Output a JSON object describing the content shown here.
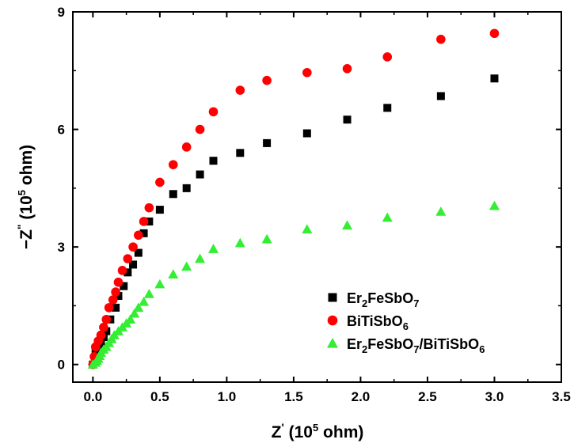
{
  "chart_data": {
    "type": "scatter",
    "xlabel": {
      "main": "Z",
      "prime": "'",
      "open": " (10",
      "exp": "5",
      "close": " ohm)"
    },
    "ylabel": {
      "main": "−Z",
      "prime": "\"",
      "open": " (10",
      "exp": "5",
      "close": " ohm)"
    },
    "xlim": [
      -0.15,
      3.5
    ],
    "ylim": [
      -0.45,
      9
    ],
    "xticks": [
      "0.0",
      "0.5",
      "1.0",
      "1.5",
      "2.0",
      "2.5",
      "3.0",
      "3.5"
    ],
    "yticks": [
      "0",
      "3",
      "6",
      "9"
    ],
    "legend_position": "bottom-right",
    "series": [
      {
        "name": "Er2FeSbO7",
        "legend_parts": [
          [
            "Er",
            ""
          ],
          [
            "2",
            "sub"
          ],
          [
            "FeSbO",
            ""
          ],
          [
            "7",
            "sub"
          ]
        ],
        "marker": "square",
        "color": "#000000",
        "points": [
          [
            0.0,
            0.0
          ],
          [
            0.02,
            0.35
          ],
          [
            0.04,
            0.42
          ],
          [
            0.06,
            0.55
          ],
          [
            0.08,
            0.7
          ],
          [
            0.1,
            0.85
          ],
          [
            0.13,
            1.15
          ],
          [
            0.17,
            1.45
          ],
          [
            0.19,
            1.75
          ],
          [
            0.23,
            2.0
          ],
          [
            0.26,
            2.35
          ],
          [
            0.3,
            2.55
          ],
          [
            0.34,
            2.85
          ],
          [
            0.38,
            3.35
          ],
          [
            0.42,
            3.65
          ],
          [
            0.5,
            3.95
          ],
          [
            0.6,
            4.35
          ],
          [
            0.7,
            4.5
          ],
          [
            0.8,
            4.85
          ],
          [
            0.9,
            5.2
          ],
          [
            1.1,
            5.4
          ],
          [
            1.3,
            5.65
          ],
          [
            1.6,
            5.9
          ],
          [
            1.9,
            6.25
          ],
          [
            2.2,
            6.55
          ],
          [
            2.6,
            6.85
          ],
          [
            3.0,
            7.3
          ]
        ]
      },
      {
        "name": "BiTiSbO6",
        "legend_parts": [
          [
            "BiTiSbO",
            ""
          ],
          [
            "6",
            "sub"
          ]
        ],
        "marker": "circle",
        "color": "#ff0000",
        "points": [
          [
            0.0,
            0.0
          ],
          [
            0.01,
            0.2
          ],
          [
            0.02,
            0.45
          ],
          [
            0.04,
            0.6
          ],
          [
            0.06,
            0.75
          ],
          [
            0.08,
            0.95
          ],
          [
            0.1,
            1.15
          ],
          [
            0.12,
            1.45
          ],
          [
            0.15,
            1.65
          ],
          [
            0.17,
            1.85
          ],
          [
            0.19,
            2.1
          ],
          [
            0.22,
            2.4
          ],
          [
            0.26,
            2.7
          ],
          [
            0.3,
            3.0
          ],
          [
            0.34,
            3.3
          ],
          [
            0.38,
            3.65
          ],
          [
            0.42,
            4.0
          ],
          [
            0.5,
            4.65
          ],
          [
            0.6,
            5.1
          ],
          [
            0.7,
            5.55
          ],
          [
            0.8,
            6.0
          ],
          [
            0.9,
            6.45
          ],
          [
            1.1,
            7.0
          ],
          [
            1.3,
            7.25
          ],
          [
            1.6,
            7.45
          ],
          [
            1.9,
            7.55
          ],
          [
            2.2,
            7.85
          ],
          [
            2.6,
            8.3
          ],
          [
            3.0,
            8.45
          ]
        ]
      },
      {
        "name": "Er2FeSbO7/BiTiSbO6",
        "legend_parts": [
          [
            "Er",
            ""
          ],
          [
            "2",
            "sub"
          ],
          [
            "FeSbO",
            ""
          ],
          [
            "7",
            "sub"
          ],
          [
            "/BiTiSbO",
            ""
          ],
          [
            "6",
            "sub"
          ]
        ],
        "marker": "triangle",
        "color": "#33ee33",
        "points": [
          [
            0.0,
            0.0
          ],
          [
            0.02,
            0.05
          ],
          [
            0.03,
            0.1
          ],
          [
            0.04,
            0.15
          ],
          [
            0.05,
            0.22
          ],
          [
            0.06,
            0.3
          ],
          [
            0.08,
            0.38
          ],
          [
            0.1,
            0.45
          ],
          [
            0.12,
            0.55
          ],
          [
            0.14,
            0.65
          ],
          [
            0.16,
            0.75
          ],
          [
            0.19,
            0.85
          ],
          [
            0.22,
            0.95
          ],
          [
            0.25,
            1.05
          ],
          [
            0.28,
            1.15
          ],
          [
            0.31,
            1.3
          ],
          [
            0.34,
            1.45
          ],
          [
            0.38,
            1.6
          ],
          [
            0.42,
            1.8
          ],
          [
            0.5,
            2.05
          ],
          [
            0.6,
            2.3
          ],
          [
            0.7,
            2.5
          ],
          [
            0.8,
            2.7
          ],
          [
            0.9,
            2.95
          ],
          [
            1.1,
            3.1
          ],
          [
            1.3,
            3.2
          ],
          [
            1.6,
            3.45
          ],
          [
            1.9,
            3.55
          ],
          [
            2.2,
            3.75
          ],
          [
            2.6,
            3.9
          ],
          [
            3.0,
            4.05
          ]
        ]
      }
    ]
  }
}
